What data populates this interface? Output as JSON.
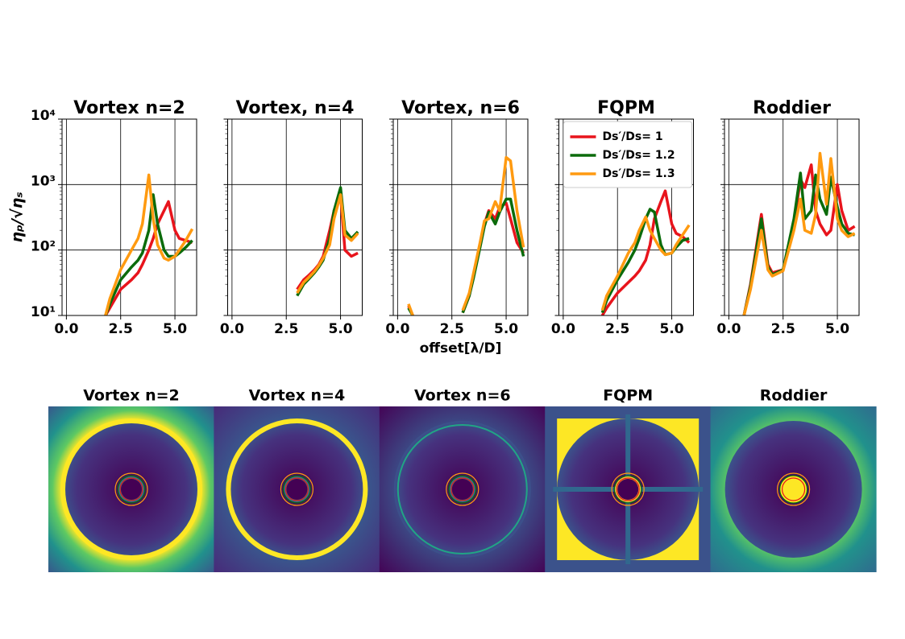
{
  "chart_data": [
    {
      "type": "line",
      "title": "Vortex n=2",
      "ylabel": "ηₚ/√ηₛ",
      "x": [
        0.5,
        0.7,
        1.0,
        1.5,
        1.8,
        2.0,
        2.5,
        3.0,
        3.3,
        3.5,
        3.8,
        4.0,
        4.2,
        4.5,
        4.7,
        5.0,
        5.2,
        5.5,
        5.8
      ],
      "series": [
        {
          "color": "#e8141c",
          "values": [
            null,
            null,
            null,
            null,
            10,
            13,
            25,
            35,
            45,
            60,
            100,
            150,
            250,
            400,
            550,
            200,
            150,
            140,
            130
          ]
        },
        {
          "color": "#0b6b0b",
          "values": [
            null,
            null,
            null,
            null,
            10,
            15,
            35,
            55,
            70,
            90,
            200,
            700,
            250,
            100,
            80,
            80,
            90,
            110,
            140
          ]
        },
        {
          "color": "#ff9a10",
          "values": [
            null,
            null,
            null,
            null,
            10,
            18,
            50,
            100,
            150,
            250,
            1400,
            300,
            120,
            75,
            70,
            80,
            100,
            140,
            210
          ]
        }
      ],
      "xlim": [
        -0.2,
        6.0
      ],
      "ylim": [
        10,
        10000
      ],
      "log_y": true,
      "xticks": [
        {
          "value": 0,
          "label": "0.0"
        },
        {
          "value": 2.5,
          "label": "2.5"
        },
        {
          "value": 5,
          "label": "5.0"
        }
      ],
      "yticks": [
        {
          "value": 10,
          "label": "10¹"
        },
        {
          "value": 100,
          "label": "10²"
        },
        {
          "value": 1000,
          "label": "10³"
        },
        {
          "value": 10000,
          "label": "10⁴"
        }
      ],
      "grid": true
    },
    {
      "type": "line",
      "title": "Vortex, n=4",
      "x": [
        0.5,
        0.7,
        1.0,
        1.5,
        1.8,
        2.0,
        2.5,
        3.0,
        3.3,
        3.5,
        3.8,
        4.0,
        4.2,
        4.5,
        4.7,
        5.0,
        5.2,
        5.5,
        5.8
      ],
      "series": [
        {
          "color": "#e8141c",
          "values": [
            null,
            null,
            null,
            null,
            null,
            null,
            null,
            25,
            35,
            40,
            50,
            60,
            80,
            200,
            400,
            700,
            100,
            80,
            90
          ]
        },
        {
          "color": "#0b6b0b",
          "values": [
            null,
            null,
            null,
            null,
            null,
            null,
            null,
            20,
            30,
            35,
            45,
            55,
            70,
            150,
            400,
            900,
            200,
            150,
            190
          ]
        },
        {
          "color": "#ff9a10",
          "values": [
            null,
            null,
            null,
            null,
            null,
            null,
            null,
            22,
            32,
            37,
            47,
            58,
            75,
            120,
            300,
            700,
            170,
            140,
            180
          ]
        }
      ],
      "xlim": [
        -0.2,
        6.0
      ],
      "ylim": [
        10,
        10000
      ],
      "log_y": true,
      "sharey": true,
      "xticks": [
        {
          "value": 0,
          "label": "0.0"
        },
        {
          "value": 2.5,
          "label": "2.5"
        },
        {
          "value": 5,
          "label": "5.0"
        }
      ],
      "grid": true
    },
    {
      "type": "line",
      "title": "Vortex, n=6",
      "xlabel": "offset[λ/D]",
      "x": [
        0.5,
        0.7,
        1.0,
        1.5,
        1.8,
        2.0,
        2.5,
        3.0,
        3.3,
        3.5,
        3.8,
        4.0,
        4.2,
        4.5,
        4.7,
        5.0,
        5.2,
        5.5,
        5.8
      ],
      "series": [
        {
          "color": "#e8141c",
          "values": [
            14,
            10,
            null,
            null,
            null,
            null,
            null,
            11,
            20,
            40,
            120,
            250,
            400,
            300,
            450,
            520,
            300,
            130,
            90
          ]
        },
        {
          "color": "#0b6b0b",
          "values": [
            13,
            10,
            null,
            null,
            null,
            null,
            null,
            11,
            20,
            38,
            110,
            230,
            380,
            250,
            380,
            600,
            600,
            200,
            80
          ]
        },
        {
          "color": "#ff9a10",
          "values": [
            15,
            10,
            null,
            null,
            null,
            null,
            null,
            12,
            22,
            45,
            130,
            280,
            300,
            550,
            400,
            2600,
            2300,
            400,
            110
          ]
        }
      ],
      "xlim": [
        -0.2,
        6.0
      ],
      "ylim": [
        10,
        10000
      ],
      "log_y": true,
      "sharey": true,
      "xticks": [
        {
          "value": 0,
          "label": "0.0"
        },
        {
          "value": 2.5,
          "label": "2.5"
        },
        {
          "value": 5,
          "label": "5.0"
        }
      ],
      "grid": true
    },
    {
      "type": "line",
      "title": "FQPM",
      "legend": "upper left",
      "x": [
        0.5,
        0.7,
        1.0,
        1.5,
        1.8,
        2.0,
        2.5,
        3.0,
        3.3,
        3.5,
        3.8,
        4.0,
        4.2,
        4.5,
        4.7,
        5.0,
        5.2,
        5.5,
        5.8
      ],
      "series": [
        {
          "name": "Ds′/Ds= 1",
          "color": "#e8141c",
          "values": [
            null,
            null,
            null,
            null,
            10,
            13,
            22,
            32,
            40,
            48,
            70,
            120,
            300,
            550,
            800,
            250,
            180,
            160,
            130
          ]
        },
        {
          "name": "Ds′/Ds= 1.2",
          "color": "#0b6b0b",
          "values": [
            null,
            null,
            null,
            null,
            11,
            17,
            35,
            65,
            100,
            150,
            300,
            420,
            380,
            120,
            85,
            90,
            110,
            140,
            150
          ]
        },
        {
          "name": "Ds′/Ds= 1.3",
          "color": "#ff9a10",
          "values": [
            null,
            null,
            null,
            null,
            12,
            20,
            40,
            90,
            130,
            200,
            320,
            200,
            150,
            100,
            85,
            90,
            120,
            170,
            240
          ]
        }
      ],
      "xlim": [
        -0.2,
        6.0
      ],
      "ylim": [
        10,
        10000
      ],
      "log_y": true,
      "sharey": true,
      "xticks": [
        {
          "value": 0,
          "label": "0.0"
        },
        {
          "value": 2.5,
          "label": "2.5"
        },
        {
          "value": 5,
          "label": "5.0"
        }
      ],
      "grid": true
    },
    {
      "type": "line",
      "title": "Roddier",
      "x": [
        0.5,
        0.7,
        1.0,
        1.5,
        1.8,
        2.0,
        2.5,
        3.0,
        3.3,
        3.5,
        3.8,
        4.0,
        4.2,
        4.5,
        4.7,
        5.0,
        5.2,
        5.5,
        5.8
      ],
      "series": [
        {
          "color": "#e8141c",
          "values": [
            null,
            10,
            30,
            350,
            60,
            45,
            50,
            250,
            1200,
            900,
            2000,
            400,
            250,
            170,
            200,
            1000,
            400,
            200,
            230
          ]
        },
        {
          "color": "#0b6b0b",
          "values": [
            null,
            10,
            28,
            300,
            55,
            42,
            50,
            300,
            1500,
            300,
            400,
            1400,
            600,
            350,
            1300,
            450,
            250,
            180,
            170
          ]
        },
        {
          "color": "#ff9a10",
          "values": [
            null,
            10,
            25,
            200,
            50,
            40,
            48,
            200,
            600,
            200,
            180,
            350,
            3000,
            500,
            2500,
            300,
            200,
            160,
            180
          ]
        }
      ],
      "xlim": [
        -0.2,
        6.0
      ],
      "ylim": [
        10,
        10000
      ],
      "log_y": true,
      "sharey": true,
      "xticks": [
        {
          "value": 0,
          "label": "0.0"
        },
        {
          "value": 2.5,
          "label": "2.5"
        },
        {
          "value": 5,
          "label": "5.0"
        }
      ],
      "grid": true
    }
  ],
  "images": [
    {
      "title": "Vortex n=2"
    },
    {
      "title": "Vortex n=4"
    },
    {
      "title": "Vortex n=6"
    },
    {
      "title": "FQPM"
    },
    {
      "title": "Roddier"
    }
  ]
}
